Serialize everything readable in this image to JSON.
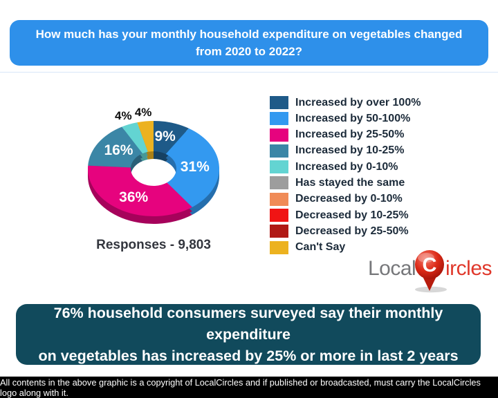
{
  "header": {
    "question_line1": "How much has your monthly household expenditure on vegetables changed",
    "question_line2": "from 2020 to 2022?",
    "bg_color": "#2e90ea"
  },
  "chart_data": {
    "type": "pie",
    "variant": "3d-donut",
    "title": "How much has your monthly household expenditure on vegetables changed from 2020 to 2022?",
    "legend_position": "right",
    "responses": "9,803",
    "responses_label": "Responses - 9,803",
    "labels": [
      "Increased by over 100%",
      "Increased by 50-100%",
      "Increased by 25-50%",
      "Increased by 10-25%",
      "Increased by 0-10%",
      "Has stayed the same",
      "Decreased by 0-10%",
      "Decreased by 10-25%",
      "Decreased by 25-50%",
      "Can't Say"
    ],
    "values": [
      9,
      31,
      36,
      16,
      4,
      0,
      0,
      0,
      0,
      4
    ],
    "colors": [
      "#1e5a88",
      "#3399f0",
      "#e6037e",
      "#3b86a6",
      "#63d4d2",
      "#9d9d9d",
      "#f08b57",
      "#f01414",
      "#b01a16",
      "#ecb220"
    ]
  },
  "logo": {
    "prefix": "Local",
    "pin_letter": "C",
    "suffix": "ircles",
    "prefix_color": "#76777a",
    "suffix_color": "#e0382b"
  },
  "insight_banner": {
    "line1": "76% household consumers surveyed say their monthly expenditure",
    "line2": "on vegetables has increased by 25% or more in last 2 years",
    "bg_color": "#114a5c"
  },
  "footer": {
    "text": "All contents in the above graphic is a copyright of LocalCircles and if published or broadcasted, must carry the LocalCircles logo along with it.",
    "bg_color": "#000000"
  }
}
